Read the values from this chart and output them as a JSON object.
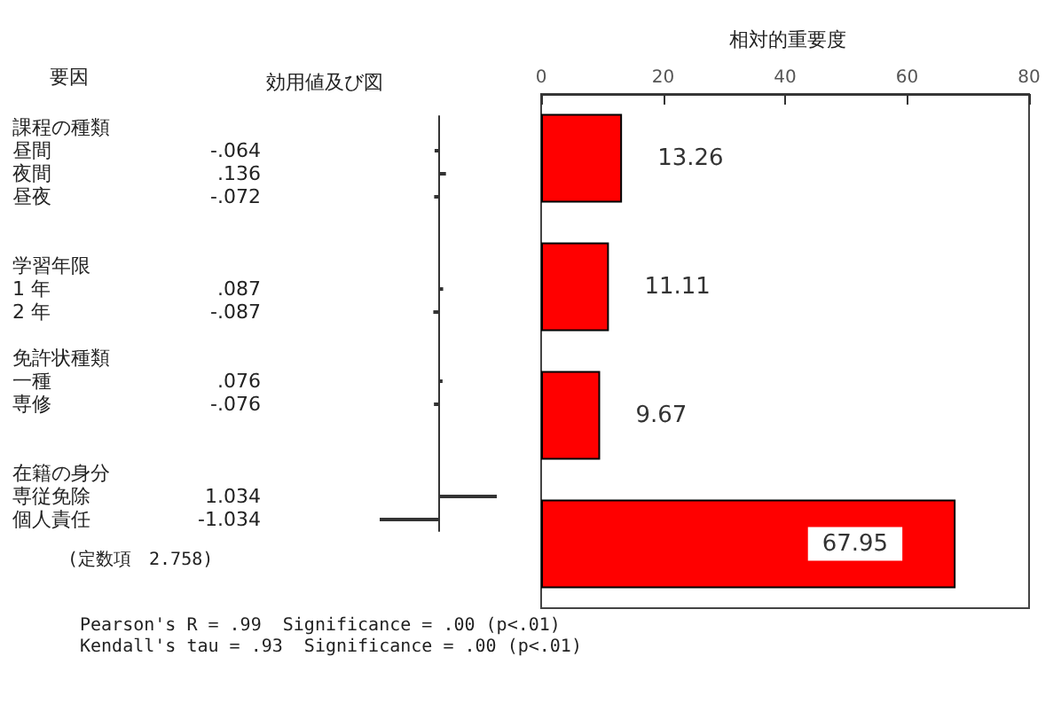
{
  "chart_data": [
    {
      "type": "bar",
      "orientation": "horizontal",
      "title": "効用値及び図",
      "ylabel": "要因",
      "categories": [
        "課程の種類",
        "昼間",
        "夜間",
        "昼夜",
        null,
        null,
        "学習年限",
        "1 年",
        "2 年",
        null,
        "免許状種類",
        "一種",
        "専修",
        null,
        null,
        "在籍の身分",
        "専従免除",
        "個人責任"
      ],
      "values": [
        null,
        -0.064,
        0.136,
        -0.072,
        null,
        null,
        null,
        0.087,
        -0.087,
        null,
        null,
        0.076,
        -0.076,
        null,
        null,
        null,
        1.034,
        -1.034
      ],
      "value_labels": [
        null,
        "-.064",
        ".136",
        "-.072",
        null,
        null,
        null,
        ".087",
        "-.087",
        null,
        null,
        ".076",
        "-.076",
        null,
        null,
        null,
        "1.034",
        "-1.034"
      ],
      "color": "#333333",
      "annotations": [
        "(定数項　2.758)",
        "Pearson's R = .99  Significance = .00 (p<.01)",
        "Kendall's tau = .93  Significance = .00 (p<.01)"
      ]
    },
    {
      "type": "bar",
      "orientation": "horizontal",
      "title": "相対的重要度",
      "categories": [
        null,
        null,
        null,
        null
      ],
      "values": [
        13.26,
        11.11,
        9.67,
        67.95
      ],
      "color": "#ff0000",
      "xlim": [
        0,
        80
      ],
      "xticks": [
        0,
        20,
        40,
        60,
        80
      ],
      "data_labels": true
    }
  ]
}
